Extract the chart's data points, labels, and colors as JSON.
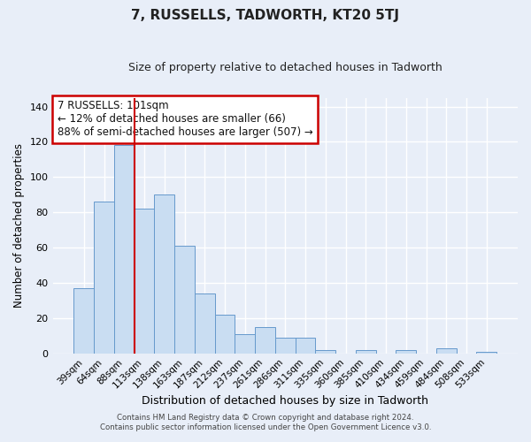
{
  "title": "7, RUSSELLS, TADWORTH, KT20 5TJ",
  "subtitle": "Size of property relative to detached houses in Tadworth",
  "xlabel": "Distribution of detached houses by size in Tadworth",
  "ylabel": "Number of detached properties",
  "bar_labels": [
    "39sqm",
    "64sqm",
    "88sqm",
    "113sqm",
    "138sqm",
    "163sqm",
    "187sqm",
    "212sqm",
    "237sqm",
    "261sqm",
    "286sqm",
    "311sqm",
    "335sqm",
    "360sqm",
    "385sqm",
    "410sqm",
    "434sqm",
    "459sqm",
    "484sqm",
    "508sqm",
    "533sqm"
  ],
  "bar_heights": [
    37,
    86,
    118,
    82,
    90,
    61,
    34,
    22,
    11,
    15,
    9,
    9,
    2,
    0,
    2,
    0,
    2,
    0,
    3,
    0,
    1
  ],
  "bar_color": "#c9ddf2",
  "bar_edge_color": "#6699cc",
  "vline_color": "#cc0000",
  "annotation_text": "7 RUSSELLS: 101sqm\n← 12% of detached houses are smaller (66)\n88% of semi-detached houses are larger (507) →",
  "annotation_box_color": "#ffffff",
  "annotation_box_edge": "#cc0000",
  "ylim": [
    0,
    145
  ],
  "yticks": [
    0,
    20,
    40,
    60,
    80,
    100,
    120,
    140
  ],
  "footer_line1": "Contains HM Land Registry data © Crown copyright and database right 2024.",
  "footer_line2": "Contains public sector information licensed under the Open Government Licence v3.0.",
  "background_color": "#e8eef8",
  "plot_bg_color": "#e8eef8",
  "grid_color": "#ffffff"
}
